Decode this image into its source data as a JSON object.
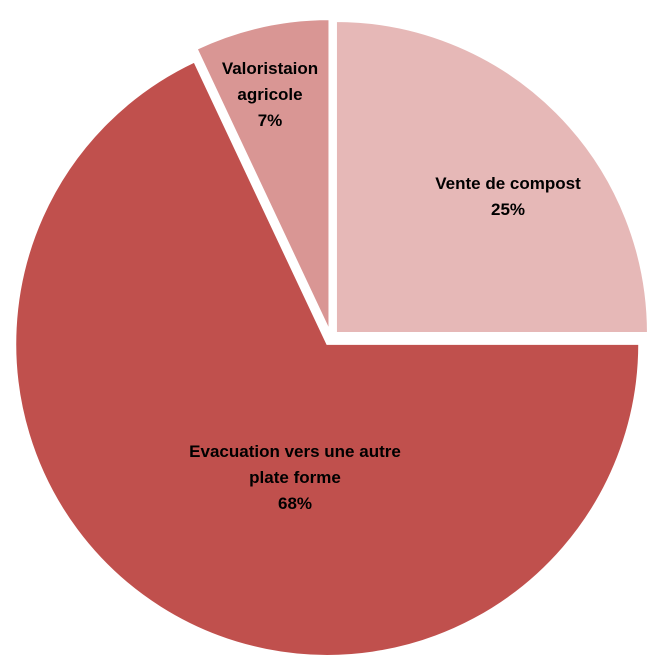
{
  "chart_data": {
    "type": "pie",
    "categories": [
      "Vente de compost",
      "Evacuation vers une autre plate forme",
      "Valoristaion agricole"
    ],
    "values": [
      25,
      68,
      7
    ],
    "value_labels": [
      "25%",
      "68%",
      "7%"
    ],
    "colors": [
      "#e6b8b7",
      "#c0504d",
      "#d99694"
    ]
  }
}
